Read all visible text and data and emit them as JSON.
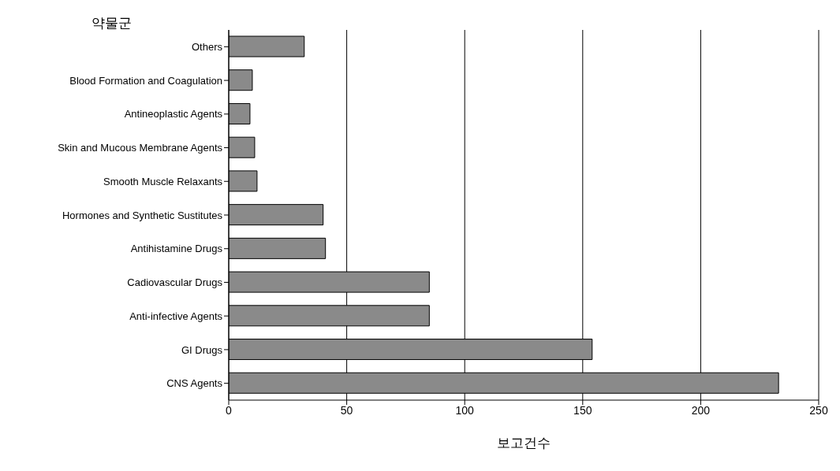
{
  "chart_data": {
    "type": "bar",
    "orientation": "horizontal",
    "ylabel": "약물군",
    "xlabel": "보고건수",
    "categories": [
      "Others",
      "Blood Formation and Coagulation",
      "Antineoplastic Agents",
      "Skin and Mucous Membrane Agents",
      "Smooth Muscle Relaxants",
      "Hormones and Synthetic Sustitutes",
      "Antihistamine Drugs",
      "Cadiovascular Drugs",
      "Anti-infective Agents",
      "GI Drugs",
      "CNS Agents"
    ],
    "values": [
      32,
      10,
      9,
      11,
      12,
      40,
      41,
      85,
      85,
      154,
      233
    ],
    "color": "#8a8a8a",
    "xlim": [
      0,
      250
    ],
    "xticks": [
      0,
      50,
      100,
      150,
      200,
      250
    ],
    "grid": "x"
  }
}
